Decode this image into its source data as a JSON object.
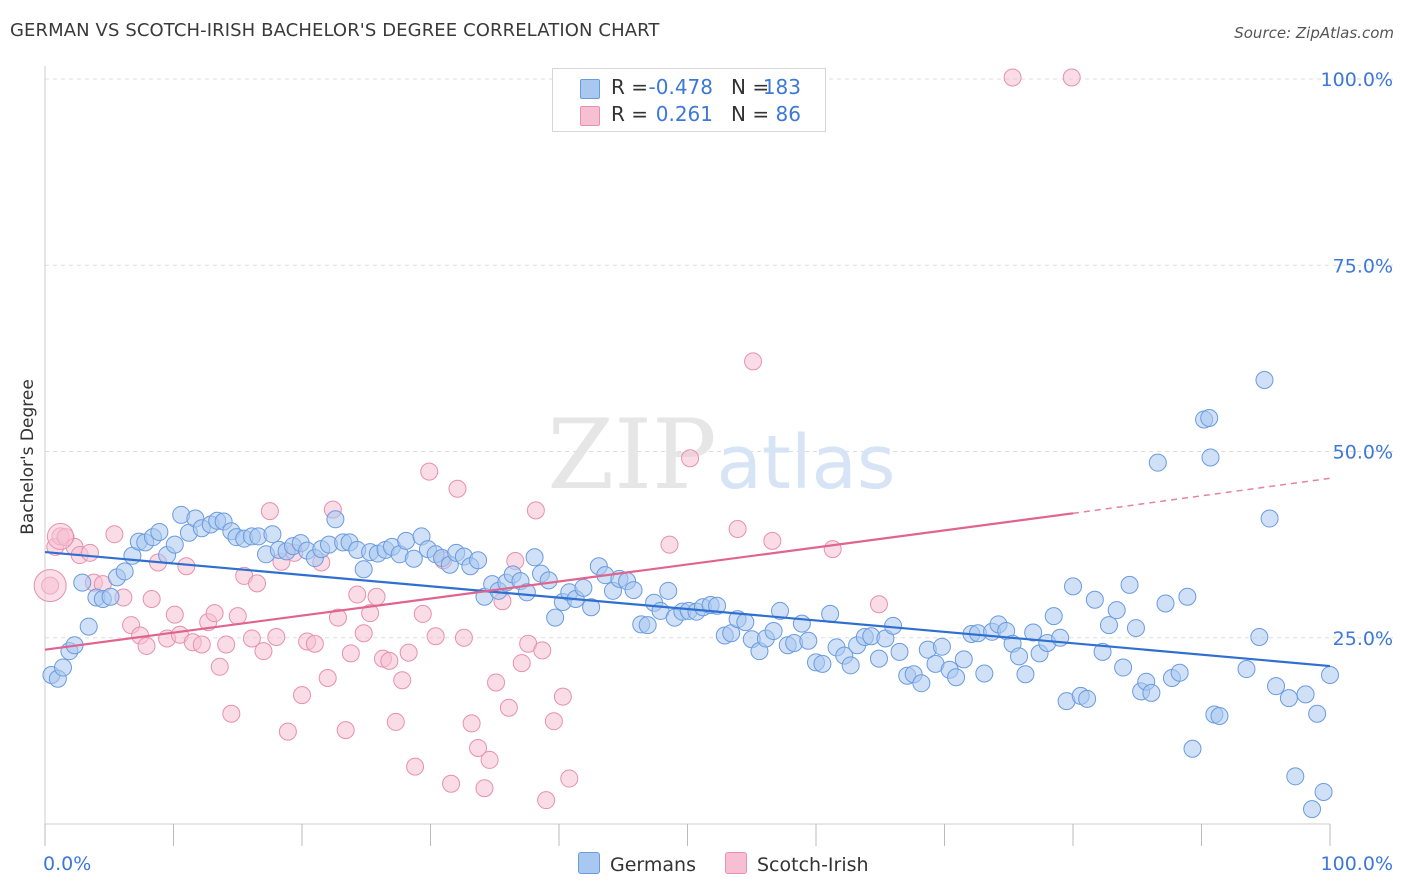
{
  "header": {
    "title": "GERMAN VS SCOTCH-IRISH BACHELOR'S DEGREE CORRELATION CHART",
    "source": "Source: ZipAtlas.com"
  },
  "legend": {
    "rows": [
      {
        "r_label": "R =",
        "r_value": "-0.478",
        "n_label": "N =",
        "n_value": "183"
      },
      {
        "r_label": "R =",
        "r_value": "0.261",
        "n_label": "N =",
        "n_value": "86"
      }
    ]
  },
  "bottom_legend": {
    "items": [
      "Germans",
      "Scotch-Irish"
    ]
  },
  "watermark": {
    "zip": "ZIP",
    "atlas": "atlas"
  },
  "colors": {
    "germans_fill": "#a9c8f0",
    "germans_stroke": "#6a9be0",
    "germans_line": "#2f6fd0",
    "scotch_fill": "#f6c0d2",
    "scotch_stroke": "#e890ae",
    "scotch_line": "#e0648e",
    "axis_text": "#3d78d8",
    "grid": "#dddddd"
  },
  "chart_data": {
    "type": "scatter",
    "title": "GERMAN VS SCOTCH-IRISH BACHELOR'S DEGREE CORRELATION CHART",
    "xlabel": "",
    "ylabel": "Bachelor's Degree",
    "xlim": [
      0,
      100
    ],
    "ylim": [
      0,
      100
    ],
    "x_tick_labels": [
      "0.0%",
      "100.0%"
    ],
    "y_tick_labels": [
      "25.0%",
      "50.0%",
      "75.0%",
      "100.0%"
    ],
    "y_ticks": [
      25,
      50,
      75,
      100
    ],
    "grid": true,
    "legend_position": "top-center",
    "series": [
      {
        "name": "Germans",
        "r": -0.478,
        "n": 183,
        "trend": {
          "x": [
            0,
            100
          ],
          "y": [
            36.5,
            21.2
          ]
        },
        "points": [
          [
            0.5,
            20
          ],
          [
            1,
            19.5
          ],
          [
            1.4,
            21
          ],
          [
            1.9,
            23.2
          ],
          [
            2.3,
            24
          ],
          [
            2.9,
            32.4
          ],
          [
            3.4,
            26.5
          ],
          [
            4,
            30.4
          ],
          [
            4.5,
            30.2
          ],
          [
            5.1,
            30.5
          ],
          [
            5.6,
            33.1
          ],
          [
            6.2,
            33.9
          ],
          [
            6.8,
            36
          ],
          [
            7.3,
            37.9
          ],
          [
            7.8,
            37.8
          ],
          [
            8.4,
            38.5
          ],
          [
            8.9,
            39.2
          ],
          [
            9.5,
            36.1
          ],
          [
            10.1,
            37.5
          ],
          [
            10.6,
            41.5
          ],
          [
            11.2,
            39.1
          ],
          [
            11.7,
            41
          ],
          [
            12.2,
            39.7
          ],
          [
            12.9,
            40.2
          ],
          [
            13.4,
            40.7
          ],
          [
            13.9,
            40.6
          ],
          [
            14.5,
            39.3
          ],
          [
            14.9,
            38.5
          ],
          [
            15.5,
            38.3
          ],
          [
            16.1,
            38.6
          ],
          [
            16.6,
            38.6
          ],
          [
            17.2,
            36.2
          ],
          [
            17.7,
            38.9
          ],
          [
            18.2,
            36.8
          ],
          [
            18.8,
            36.6
          ],
          [
            19.3,
            37.3
          ],
          [
            19.9,
            37.7
          ],
          [
            20.4,
            36.7
          ],
          [
            21,
            35.7
          ],
          [
            21.5,
            36.9
          ],
          [
            22.1,
            37.5
          ],
          [
            22.6,
            40.9
          ],
          [
            23.2,
            37.8
          ],
          [
            23.7,
            37.8
          ],
          [
            24.3,
            36.8
          ],
          [
            24.8,
            34.2
          ],
          [
            25.3,
            36.5
          ],
          [
            25.9,
            36.3
          ],
          [
            26.5,
            36.8
          ],
          [
            27,
            37.2
          ],
          [
            27.6,
            36.2
          ],
          [
            28.1,
            38
          ],
          [
            28.7,
            35.6
          ],
          [
            29.3,
            38.6
          ],
          [
            29.8,
            36.9
          ],
          [
            30.4,
            36.2
          ],
          [
            30.9,
            35.7
          ],
          [
            31.5,
            34.8
          ],
          [
            32,
            36.4
          ],
          [
            32.6,
            35.9
          ],
          [
            33.1,
            34.6
          ],
          [
            33.7,
            35.4
          ],
          [
            34.2,
            30.5
          ],
          [
            34.8,
            32.2
          ],
          [
            35.3,
            31.3
          ],
          [
            35.9,
            32.4
          ],
          [
            36.4,
            33.5
          ],
          [
            37,
            32.6
          ],
          [
            37.5,
            31.1
          ],
          [
            38.1,
            35.8
          ],
          [
            38.6,
            33.6
          ],
          [
            39.2,
            32.7
          ],
          [
            39.7,
            27.7
          ],
          [
            40.3,
            29.8
          ],
          [
            40.8,
            31.1
          ],
          [
            41.3,
            30.2
          ],
          [
            41.9,
            31.7
          ],
          [
            42.5,
            29.1
          ],
          [
            43.1,
            34.6
          ],
          [
            43.6,
            33.4
          ],
          [
            44.2,
            31.3
          ],
          [
            44.7,
            32.9
          ],
          [
            45.3,
            32.6
          ],
          [
            45.8,
            31.4
          ],
          [
            46.4,
            26.8
          ],
          [
            46.9,
            26.7
          ],
          [
            47.4,
            29.7
          ],
          [
            47.9,
            28.6
          ],
          [
            48.5,
            31.3
          ],
          [
            49,
            27.7
          ],
          [
            49.6,
            28.5
          ],
          [
            50.1,
            28.6
          ],
          [
            50.7,
            28.5
          ],
          [
            51.2,
            29.1
          ],
          [
            51.8,
            29.4
          ],
          [
            52.3,
            29.3
          ],
          [
            52.9,
            25.3
          ],
          [
            53.4,
            25.6
          ],
          [
            53.9,
            27.5
          ],
          [
            54.5,
            27.1
          ],
          [
            55,
            24.8
          ],
          [
            55.6,
            23.2
          ],
          [
            56.1,
            24.9
          ],
          [
            56.7,
            25.9
          ],
          [
            57.2,
            28.6
          ],
          [
            57.8,
            24
          ],
          [
            58.3,
            24.3
          ],
          [
            58.9,
            26.9
          ],
          [
            59.4,
            24.6
          ],
          [
            60,
            21.7
          ],
          [
            60.5,
            21.5
          ],
          [
            61.1,
            28.2
          ],
          [
            61.6,
            23.7
          ],
          [
            62.2,
            22.6
          ],
          [
            62.7,
            21.3
          ],
          [
            63.2,
            24
          ],
          [
            63.8,
            25.1
          ],
          [
            64.3,
            25.2
          ],
          [
            64.9,
            22.2
          ],
          [
            65.4,
            24.9
          ],
          [
            66,
            26.6
          ],
          [
            66.5,
            23.1
          ],
          [
            67.1,
            19.9
          ],
          [
            67.6,
            20.1
          ],
          [
            68.2,
            18.9
          ],
          [
            68.7,
            23.4
          ],
          [
            69.3,
            21.5
          ],
          [
            69.8,
            23.8
          ],
          [
            70.4,
            20.7
          ],
          [
            70.9,
            19.7
          ],
          [
            71.5,
            22.1
          ],
          [
            72.1,
            25.5
          ],
          [
            72.6,
            25.6
          ],
          [
            73.1,
            20.2
          ],
          [
            73.7,
            25.8
          ],
          [
            74.2,
            26.8
          ],
          [
            74.8,
            25.9
          ],
          [
            75.3,
            24.2
          ],
          [
            75.8,
            22.5
          ],
          [
            76.3,
            20.1
          ],
          [
            76.9,
            25.7
          ],
          [
            77.4,
            22.9
          ],
          [
            78,
            24.3
          ],
          [
            78.5,
            27.9
          ],
          [
            79,
            25
          ],
          [
            79.5,
            16.5
          ],
          [
            80,
            31.9
          ],
          [
            80.6,
            17.2
          ],
          [
            81.1,
            16.8
          ],
          [
            81.7,
            30.1
          ],
          [
            82.3,
            23.1
          ],
          [
            82.8,
            26.7
          ],
          [
            83.4,
            28.7
          ],
          [
            83.9,
            21
          ],
          [
            84.4,
            32.1
          ],
          [
            84.9,
            26.3
          ],
          [
            85.3,
            17.8
          ],
          [
            85.7,
            19.1
          ],
          [
            86.1,
            17.6
          ],
          [
            86.6,
            48.5
          ],
          [
            87.2,
            29.6
          ],
          [
            87.7,
            19.6
          ],
          [
            88.3,
            20.3
          ],
          [
            88.9,
            30.5
          ],
          [
            89.3,
            10.1
          ],
          [
            90.2,
            54.3
          ],
          [
            90.6,
            54.5
          ],
          [
            90.7,
            49.2
          ],
          [
            91,
            14.7
          ],
          [
            91.4,
            14.5
          ],
          [
            93.5,
            20.8
          ],
          [
            94.5,
            25.1
          ],
          [
            94.9,
            59.6
          ],
          [
            95.3,
            41
          ],
          [
            95.8,
            18.5
          ],
          [
            96.8,
            16.9
          ],
          [
            97.3,
            6.4
          ],
          [
            98.1,
            17.4
          ],
          [
            98.6,
            2
          ],
          [
            99,
            14.8
          ],
          [
            99.5,
            4.3
          ],
          [
            100,
            20
          ]
        ]
      },
      {
        "name": "Scotch-Irish",
        "r": 0.261,
        "n": 86,
        "trend": {
          "x": [
            0,
            80
          ],
          "y": [
            23.4,
            41.7
          ]
        },
        "trend_extension": {
          "x": [
            80,
            100
          ],
          "y": [
            41.7,
            46.4
          ]
        },
        "points": [
          [
            0.4,
            32
          ],
          [
            0.8,
            37.2
          ],
          [
            1.2,
            38.6
          ],
          [
            1.6,
            38.5
          ],
          [
            2.3,
            37.2
          ],
          [
            2.7,
            36.1
          ],
          [
            3.5,
            36.4
          ],
          [
            3.8,
            32.4
          ],
          [
            4.5,
            32.2
          ],
          [
            5.4,
            38.9
          ],
          [
            6.1,
            30.4
          ],
          [
            6.7,
            26.7
          ],
          [
            7.4,
            25.3
          ],
          [
            7.9,
            23.9
          ],
          [
            8.3,
            30.2
          ],
          [
            8.8,
            35.1
          ],
          [
            9.5,
            24.9
          ],
          [
            10.1,
            28.1
          ],
          [
            10.5,
            25.4
          ],
          [
            11,
            34.6
          ],
          [
            11.5,
            24.4
          ],
          [
            12.2,
            24.1
          ],
          [
            12.7,
            27.1
          ],
          [
            13.2,
            28.3
          ],
          [
            13.6,
            21.1
          ],
          [
            14.1,
            24.1
          ],
          [
            14.5,
            14.8
          ],
          [
            15,
            27.9
          ],
          [
            15.5,
            33.3
          ],
          [
            16.1,
            24.9
          ],
          [
            16.5,
            32.3
          ],
          [
            17,
            23.2
          ],
          [
            17.5,
            42
          ],
          [
            18,
            25.1
          ],
          [
            18.4,
            35.2
          ],
          [
            18.9,
            12.4
          ],
          [
            19.4,
            36.4
          ],
          [
            20,
            17.3
          ],
          [
            20.4,
            24.5
          ],
          [
            21,
            24.2
          ],
          [
            21.5,
            35.1
          ],
          [
            22,
            19.6
          ],
          [
            22.4,
            42.2
          ],
          [
            22.8,
            27.7
          ],
          [
            23.4,
            12.6
          ],
          [
            23.8,
            22.9
          ],
          [
            24.3,
            30.8
          ],
          [
            24.8,
            25.6
          ],
          [
            25.3,
            28.3
          ],
          [
            25.8,
            30.5
          ],
          [
            26.3,
            22.2
          ],
          [
            26.8,
            21.9
          ],
          [
            27.3,
            13.7
          ],
          [
            27.8,
            19.3
          ],
          [
            28.3,
            23
          ],
          [
            28.8,
            7.7
          ],
          [
            29.4,
            28.2
          ],
          [
            29.9,
            47.3
          ],
          [
            30.4,
            25.2
          ],
          [
            31,
            35.4
          ],
          [
            31.6,
            5.4
          ],
          [
            32.1,
            45
          ],
          [
            32.6,
            25
          ],
          [
            33.2,
            13.5
          ],
          [
            33.7,
            10.2
          ],
          [
            34.2,
            4.8
          ],
          [
            34.6,
            8.6
          ],
          [
            35.1,
            19
          ],
          [
            35.6,
            29.9
          ],
          [
            36.1,
            15.6
          ],
          [
            36.6,
            35.3
          ],
          [
            37.1,
            21.6
          ],
          [
            37.6,
            24.2
          ],
          [
            38.2,
            42.1
          ],
          [
            38.7,
            23.3
          ],
          [
            39,
            3.2
          ],
          [
            39.6,
            13.8
          ],
          [
            40.3,
            17.1
          ],
          [
            40.8,
            6.1
          ],
          [
            48.6,
            37.5
          ],
          [
            50.2,
            49.1
          ],
          [
            53.9,
            39.6
          ],
          [
            55.1,
            62.1
          ],
          [
            56.6,
            38
          ],
          [
            61.3,
            36.9
          ],
          [
            64.9,
            29.5
          ],
          [
            75.3,
            100.2
          ],
          [
            79.9,
            100.2
          ]
        ]
      }
    ]
  }
}
